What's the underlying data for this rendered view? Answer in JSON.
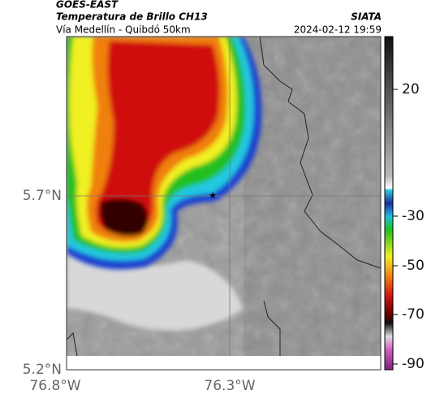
{
  "header": {
    "title": "GOES-EAST",
    "subtitle": "Temperatura de Brillo CH13",
    "route": "Vía Medellín - Quibdó 50km",
    "source": "SIATA",
    "timestamp": "2024-02-12 19:59"
  },
  "map": {
    "latitude_labels": [
      "5.7°N",
      "5.2°N"
    ],
    "longitude_labels": [
      "76.8°W",
      "76.3°W"
    ]
  },
  "colorbar": {
    "tick_labels": [
      "20",
      "-30",
      "-50",
      "-70",
      "-90"
    ]
  }
}
